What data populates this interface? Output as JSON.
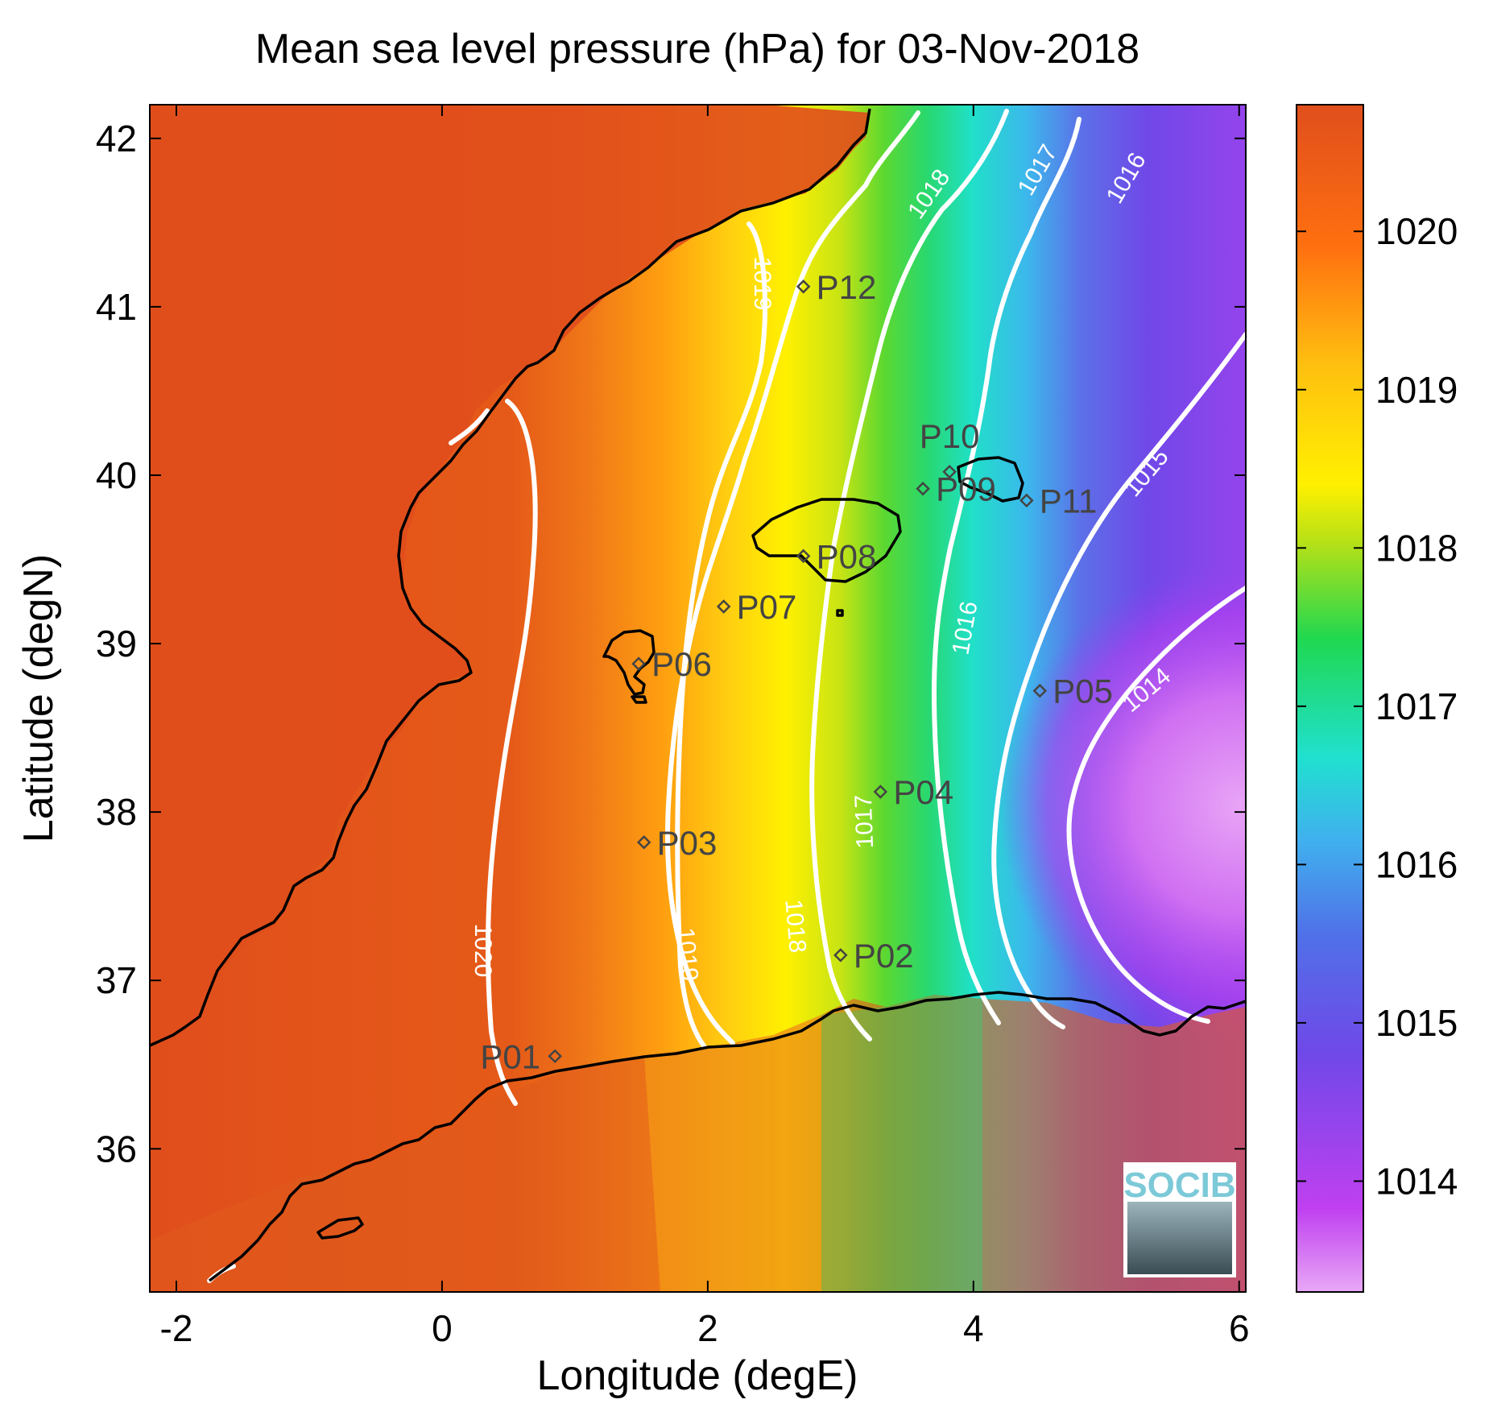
{
  "title": "Mean sea level pressure (hPa) for 03-Nov-2018",
  "xlabel": "Longitude (degE)",
  "ylabel": "Latitude (degN)",
  "x_ticks": [
    "-2",
    "0",
    "2",
    "4",
    "6"
  ],
  "y_ticks": [
    "36",
    "37",
    "38",
    "39",
    "40",
    "41",
    "42"
  ],
  "colorbar_ticks": [
    "1014",
    "1015",
    "1016",
    "1017",
    "1018",
    "1019",
    "1020"
  ],
  "colormap": [
    "#e0a0f4",
    "#c040f0",
    "#7048e8",
    "#4aa8ee",
    "#20e0d0",
    "#28d870",
    "#b4e018",
    "#fff000",
    "#ffc010",
    "#ff7010",
    "#e05018"
  ],
  "contour_color": "#ffffff",
  "coastline_color": "#000000",
  "points": [
    {
      "label": "P01",
      "lon": 0.85,
      "lat": 36.55
    },
    {
      "label": "P02",
      "lon": 3.0,
      "lat": 37.15
    },
    {
      "label": "P03",
      "lon": 1.52,
      "lat": 37.82
    },
    {
      "label": "P04",
      "lon": 3.3,
      "lat": 38.12
    },
    {
      "label": "P05",
      "lon": 4.5,
      "lat": 38.72
    },
    {
      "label": "P06",
      "lon": 1.48,
      "lat": 38.88
    },
    {
      "label": "P07",
      "lon": 2.12,
      "lat": 39.22
    },
    {
      "label": "P08",
      "lon": 2.72,
      "lat": 39.52
    },
    {
      "label": "P09",
      "lon": 3.62,
      "lat": 39.92
    },
    {
      "label": "P10",
      "lon": 3.82,
      "lat": 40.02
    },
    {
      "label": "P11",
      "lon": 4.4,
      "lat": 39.85
    },
    {
      "label": "P12",
      "lon": 2.72,
      "lat": 41.12
    }
  ],
  "contour_labels": [
    "1020",
    "1019",
    "1019",
    "1018",
    "1018",
    "1017",
    "1017",
    "1016",
    "1016",
    "1015",
    "1014"
  ],
  "logo": {
    "text": "SOCIB"
  },
  "chart_data": {
    "type": "heatmap",
    "title": "Mean sea level pressure (hPa) for 03-Nov-2018",
    "xlabel": "Longitude (degE)",
    "ylabel": "Latitude (degN)",
    "xlim": [
      -2.2,
      6.05
    ],
    "ylim": [
      35.15,
      42.2
    ],
    "colorbar_range": [
      1013.3,
      1020.8
    ],
    "contour_levels": [
      1014,
      1015,
      1016,
      1017,
      1018,
      1019,
      1020
    ],
    "field_description_points": [
      {
        "lon": -1.0,
        "lat": 40.0,
        "value": 1020.6
      },
      {
        "lon": 0.5,
        "lat": 39.0,
        "value": 1020.1
      },
      {
        "lon": 1.8,
        "lat": 39.0,
        "value": 1019.3
      },
      {
        "lon": 2.7,
        "lat": 39.0,
        "value": 1018.5
      },
      {
        "lon": 3.4,
        "lat": 38.5,
        "value": 1017.3
      },
      {
        "lon": 4.0,
        "lat": 38.5,
        "value": 1016.0
      },
      {
        "lon": 4.7,
        "lat": 38.3,
        "value": 1014.8
      },
      {
        "lon": 5.6,
        "lat": 38.0,
        "value": 1013.5
      }
    ]
  }
}
